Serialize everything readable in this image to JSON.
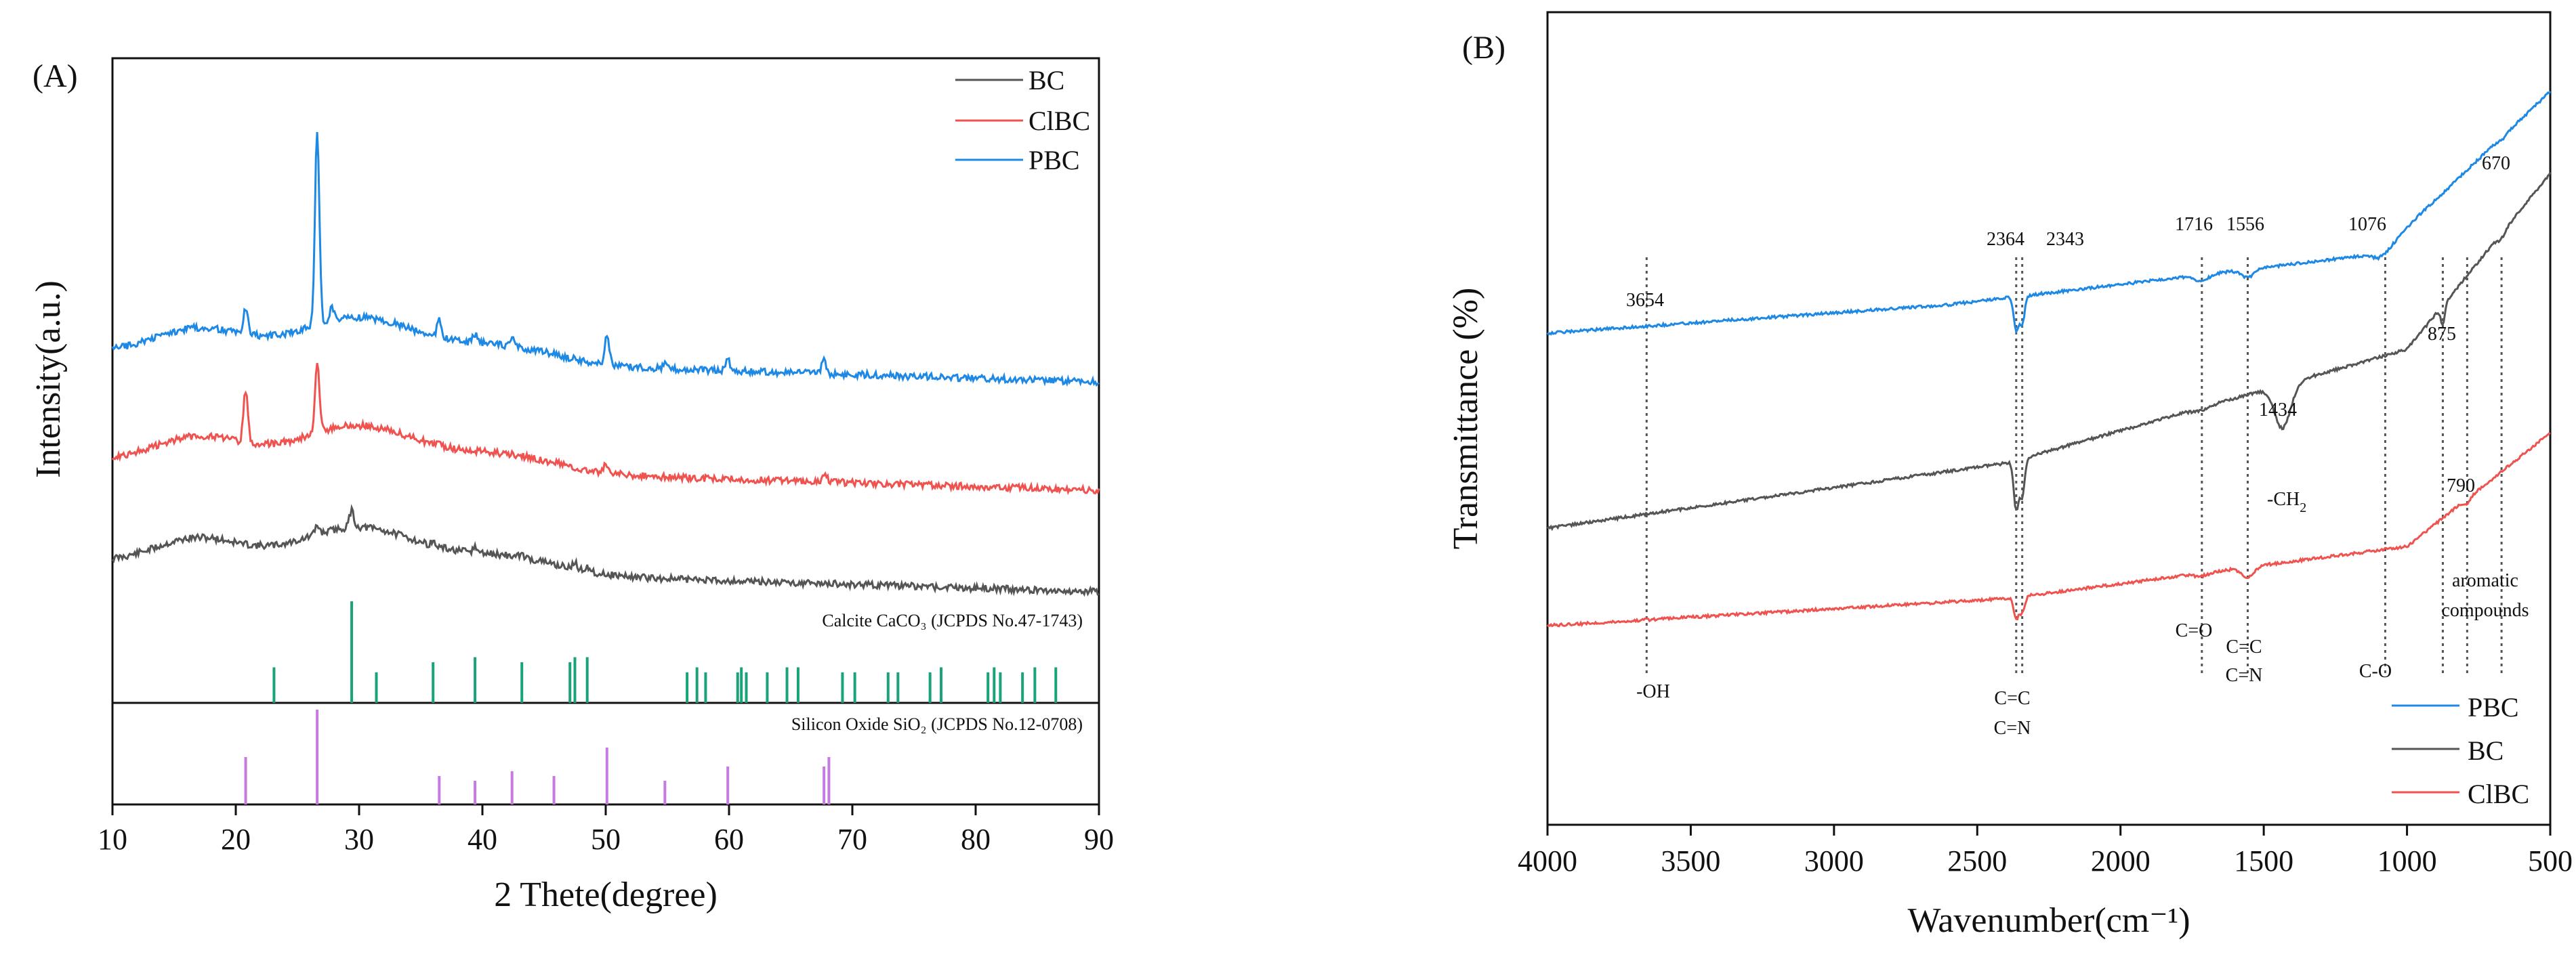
{
  "chart_data": [
    {
      "panel": "(A)",
      "type": "line",
      "xlabel": "2 Thete(degree)",
      "ylabel": "Intensity(a.u.)",
      "xlim": [
        10,
        90
      ],
      "xticks": [
        "10",
        "20",
        "30",
        "40",
        "50",
        "60",
        "70",
        "80",
        "90"
      ],
      "y_ticks_shown": false,
      "legend_position": "top-right",
      "series": [
        {
          "name": "BC",
          "color": "#555555",
          "offset": 0.0,
          "peaks": [
            {
              "x": 26.6,
              "h": 0.5
            },
            {
              "x": 29.4,
              "h": 1.0
            },
            {
              "x": 36.0,
              "h": 0.2
            },
            {
              "x": 39.4,
              "h": 0.3
            },
            {
              "x": 43.2,
              "h": 0.2
            },
            {
              "x": 47.5,
              "h": 0.35
            },
            {
              "x": 48.5,
              "h": 0.3
            }
          ]
        },
        {
          "name": "ClBC",
          "color": "#ef5350",
          "offset": 1.0,
          "peaks": [
            {
              "x": 20.8,
              "h": 3.0
            },
            {
              "x": 26.6,
              "h": 4.0
            },
            {
              "x": 36.5,
              "h": 0.3
            },
            {
              "x": 50.0,
              "h": 0.5
            },
            {
              "x": 59.8,
              "h": 0.3
            },
            {
              "x": 67.8,
              "h": 0.4
            }
          ]
        },
        {
          "name": "PBC",
          "color": "#1e88e5",
          "offset": 2.0,
          "peaks": [
            {
              "x": 20.8,
              "h": 1.5
            },
            {
              "x": 26.6,
              "h": 11.0
            },
            {
              "x": 27.8,
              "h": 0.8
            },
            {
              "x": 36.5,
              "h": 1.0
            },
            {
              "x": 39.4,
              "h": 0.5
            },
            {
              "x": 42.4,
              "h": 0.4
            },
            {
              "x": 50.1,
              "h": 1.7
            },
            {
              "x": 54.8,
              "h": 0.3
            },
            {
              "x": 59.9,
              "h": 0.7
            },
            {
              "x": 67.7,
              "h": 0.8
            }
          ]
        }
      ],
      "reference_patterns": [
        {
          "caption": "Calcite CaCO₃ (JCPDS No.47-1743)",
          "color": "#1aa37a",
          "peaks": [
            {
              "x": 23.1,
              "h": 0.35
            },
            {
              "x": 29.4,
              "h": 1.0
            },
            {
              "x": 31.4,
              "h": 0.3
            },
            {
              "x": 36.0,
              "h": 0.4
            },
            {
              "x": 39.4,
              "h": 0.45
            },
            {
              "x": 43.2,
              "h": 0.4
            },
            {
              "x": 47.1,
              "h": 0.4
            },
            {
              "x": 47.5,
              "h": 0.45
            },
            {
              "x": 48.5,
              "h": 0.45
            },
            {
              "x": 56.6,
              "h": 0.3
            },
            {
              "x": 57.4,
              "h": 0.35
            },
            {
              "x": 58.1,
              "h": 0.3
            },
            {
              "x": 60.7,
              "h": 0.3
            },
            {
              "x": 61.0,
              "h": 0.35
            },
            {
              "x": 61.4,
              "h": 0.3
            },
            {
              "x": 63.1,
              "h": 0.3
            },
            {
              "x": 64.7,
              "h": 0.35
            },
            {
              "x": 65.6,
              "h": 0.35
            },
            {
              "x": 69.2,
              "h": 0.3
            },
            {
              "x": 70.2,
              "h": 0.3
            },
            {
              "x": 72.9,
              "h": 0.3
            },
            {
              "x": 73.7,
              "h": 0.3
            },
            {
              "x": 76.3,
              "h": 0.3
            },
            {
              "x": 77.2,
              "h": 0.35
            },
            {
              "x": 81.0,
              "h": 0.3
            },
            {
              "x": 81.5,
              "h": 0.35
            },
            {
              "x": 82.0,
              "h": 0.3
            },
            {
              "x": 83.8,
              "h": 0.3
            },
            {
              "x": 84.8,
              "h": 0.35
            },
            {
              "x": 86.5,
              "h": 0.35
            }
          ]
        },
        {
          "caption": "Silicon Oxide SiO₂ (JCPDS No.12-0708)",
          "color": "#c77be0",
          "peaks": [
            {
              "x": 20.8,
              "h": 0.5
            },
            {
              "x": 26.6,
              "h": 1.0
            },
            {
              "x": 36.5,
              "h": 0.3
            },
            {
              "x": 39.4,
              "h": 0.25
            },
            {
              "x": 42.4,
              "h": 0.35
            },
            {
              "x": 45.8,
              "h": 0.3
            },
            {
              "x": 50.1,
              "h": 0.6
            },
            {
              "x": 54.8,
              "h": 0.25
            },
            {
              "x": 59.9,
              "h": 0.4
            },
            {
              "x": 67.7,
              "h": 0.4
            },
            {
              "x": 68.1,
              "h": 0.5
            }
          ]
        }
      ]
    },
    {
      "panel": "(B)",
      "type": "line",
      "xlabel": "Wavenumber(cm⁻¹)",
      "ylabel": "Transmittance (%)",
      "xlim": [
        4000,
        500
      ],
      "x_reversed": true,
      "xticks": [
        "4000",
        "3500",
        "3000",
        "2500",
        "2000",
        "1500",
        "1000",
        "500"
      ],
      "y_ticks_shown": false,
      "legend_position": "bottom-right",
      "series": [
        {
          "name": "PBC",
          "color": "#1e88e5",
          "offset": 2.0,
          "dips": [
            {
              "x": 2364,
              "d": 0.6,
              "w": 12
            },
            {
              "x": 2343,
              "d": 0.5,
              "w": 12
            },
            {
              "x": 1716,
              "d": 0.1,
              "w": 40
            },
            {
              "x": 1556,
              "d": 0.15,
              "w": 30
            },
            {
              "x": 1076,
              "d": 0.1,
              "w": 50
            },
            {
              "x": 670,
              "d": 0.05,
              "w": 20
            }
          ]
        },
        {
          "name": "BC",
          "color": "#555555",
          "offset": 1.0,
          "dips": [
            {
              "x": 2364,
              "d": 0.9,
              "w": 12
            },
            {
              "x": 2343,
              "d": 0.7,
              "w": 12
            },
            {
              "x": 1716,
              "d": 0.05,
              "w": 40
            },
            {
              "x": 1434,
              "d": 0.8,
              "w": 40
            },
            {
              "x": 875,
              "d": 0.35,
              "w": 10
            },
            {
              "x": 670,
              "d": 0.1,
              "w": 20
            }
          ]
        },
        {
          "name": "ClBC",
          "color": "#ef5350",
          "offset": 0.0,
          "dips": [
            {
              "x": 2364,
              "d": 0.4,
              "w": 12
            },
            {
              "x": 2343,
              "d": 0.3,
              "w": 12
            },
            {
              "x": 1716,
              "d": 0.05,
              "w": 40
            },
            {
              "x": 1556,
              "d": 0.2,
              "w": 30
            },
            {
              "x": 790,
              "d": 0.1,
              "w": 15
            }
          ]
        }
      ],
      "annotations": {
        "wavenumbers": [
          "3654",
          "2364",
          "2343",
          "1716",
          "1556",
          "1076",
          "670",
          "875",
          "1434",
          "790"
        ],
        "groups": [
          "-OH",
          "C=C",
          "C=N",
          "C=O",
          "C=C",
          "C=N",
          "C-O",
          "aromatic",
          "compounds",
          "-CH",
          "2"
        ]
      },
      "markers": [
        3654,
        2364,
        2343,
        1716,
        1556,
        1076,
        875,
        790,
        670
      ]
    }
  ]
}
